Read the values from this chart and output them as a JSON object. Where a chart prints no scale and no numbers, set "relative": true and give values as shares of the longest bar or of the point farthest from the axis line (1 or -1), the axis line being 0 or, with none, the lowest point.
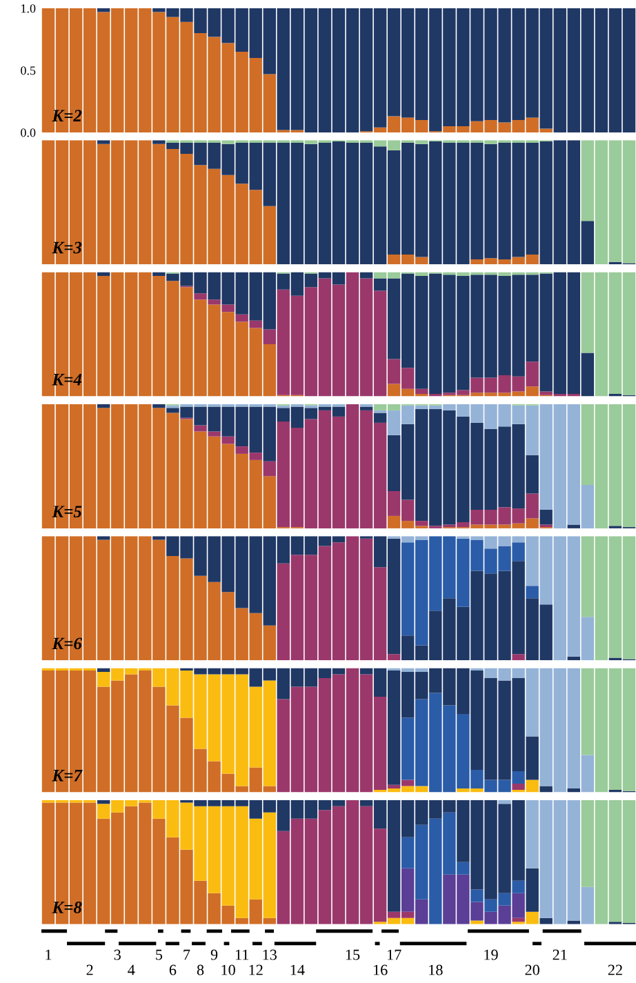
{
  "chart_data": [
    {
      "type": "bar",
      "stacked": true,
      "ylim": [
        0,
        1
      ],
      "yticks": [
        {
          "value": 0,
          "label": "0.0"
        },
        {
          "value": 0.5,
          "label": "0.5"
        },
        {
          "value": 1,
          "label": "1.0"
        }
      ],
      "tick_labels": "y",
      "annotations": [
        "K=2"
      ],
      "categories": [
        "1",
        null,
        null,
        "2",
        null,
        "3",
        "4",
        null,
        "5",
        "6",
        "7",
        "8",
        "9",
        "10",
        "11",
        "12",
        "13",
        null,
        "14",
        null,
        null,
        null,
        "15",
        null,
        "16",
        "17",
        null,
        null,
        "18",
        null,
        null,
        null,
        "19",
        null,
        null,
        "20",
        null,
        "21",
        null,
        null,
        null,
        "22",
        null
      ],
      "series": [
        {
          "color": "#d06e27",
          "values": [
            1,
            1,
            1,
            1,
            0.97,
            1,
            1,
            1,
            0.97,
            0.93,
            0.89,
            0.8,
            0.77,
            0.72,
            0.65,
            0.6,
            0.47,
            0.02,
            0.02,
            0,
            0,
            0,
            0,
            0.01,
            0.04,
            0.13,
            0.12,
            0.1,
            0.01,
            0.05,
            0.05,
            0.09,
            0.1,
            0.08,
            0.1,
            0.12,
            0.03,
            0,
            0,
            0,
            0,
            0,
            0
          ]
        },
        {
          "color": "#203864",
          "values": [
            0,
            0,
            0,
            0,
            0.03,
            0,
            0,
            0,
            0.03,
            0.07,
            0.11,
            0.2,
            0.23,
            0.28,
            0.35,
            0.4,
            0.53,
            0.98,
            0.98,
            1,
            1,
            1,
            1,
            0.99,
            0.96,
            0.87,
            0.88,
            0.9,
            0.99,
            0.95,
            0.95,
            0.91,
            0.9,
            0.92,
            0.9,
            0.88,
            0.97,
            1,
            1,
            1,
            1,
            1,
            1
          ]
        }
      ]
    },
    {
      "type": "bar",
      "stacked": true,
      "relative": true,
      "tick_labels": false,
      "annotations": [
        "K=3"
      ],
      "categories": [
        "1",
        null,
        null,
        "2",
        null,
        "3",
        "4",
        null,
        "5",
        "6",
        "7",
        "8",
        "9",
        "10",
        "11",
        "12",
        "13",
        null,
        "14",
        null,
        null,
        null,
        "15",
        null,
        "16",
        "17",
        null,
        null,
        "18",
        null,
        null,
        null,
        "19",
        null,
        null,
        "20",
        null,
        "21",
        null,
        null,
        null,
        "22",
        null
      ],
      "series": [
        {
          "color": "#d06e27",
          "values": [
            1,
            1,
            1,
            1,
            0.97,
            1,
            1,
            1,
            0.97,
            0.93,
            0.89,
            0.8,
            0.77,
            0.72,
            0.65,
            0.6,
            0.47,
            0,
            0,
            0,
            0,
            0,
            0,
            0,
            0,
            0.08,
            0.08,
            0.06,
            0,
            0,
            0,
            0.04,
            0.05,
            0.04,
            0.06,
            0.08,
            0,
            0,
            0,
            0,
            0,
            0,
            0
          ]
        },
        {
          "color": "#203864",
          "values": [
            0,
            0,
            0,
            0,
            0.03,
            0,
            0,
            0,
            0.03,
            0.05,
            0.09,
            0.18,
            0.21,
            0.25,
            0.33,
            0.38,
            0.51,
            0.98,
            0.98,
            0.97,
            0.98,
            0.99,
            0.98,
            0.98,
            0.95,
            0.84,
            0.9,
            0.91,
            0.99,
            0.98,
            0.98,
            0.94,
            0.92,
            0.94,
            0.92,
            0.9,
            0.99,
            1,
            1,
            0.35,
            0,
            0.02,
            0.01
          ]
        },
        {
          "color": "#9acb9a",
          "values": [
            0,
            0,
            0,
            0,
            0,
            0,
            0,
            0,
            0,
            0.02,
            0.02,
            0.02,
            0.02,
            0.03,
            0.02,
            0.02,
            0.02,
            0.02,
            0.02,
            0.03,
            0.02,
            0.01,
            0.02,
            0.02,
            0.05,
            0.08,
            0.02,
            0.03,
            0.01,
            0.02,
            0.02,
            0.02,
            0.03,
            0.02,
            0.02,
            0.02,
            0.01,
            0,
            0,
            0.65,
            1,
            0.98,
            0.99
          ]
        }
      ]
    },
    {
      "type": "bar",
      "stacked": true,
      "relative": true,
      "tick_labels": false,
      "annotations": [
        "K=4"
      ],
      "categories": [
        "1",
        null,
        null,
        "2",
        null,
        "3",
        "4",
        null,
        "5",
        "6",
        "7",
        "8",
        "9",
        "10",
        "11",
        "12",
        "13",
        null,
        "14",
        null,
        null,
        null,
        "15",
        null,
        "16",
        "17",
        null,
        null,
        "18",
        null,
        null,
        null,
        "19",
        null,
        null,
        "20",
        null,
        "21",
        null,
        null,
        null,
        "22",
        null
      ],
      "series": [
        {
          "color": "#d06e27",
          "values": [
            1,
            1,
            1,
            1,
            0.97,
            1,
            1,
            1,
            0.97,
            0.93,
            0.88,
            0.78,
            0.74,
            0.68,
            0.6,
            0.55,
            0.42,
            0.01,
            0.01,
            0,
            0,
            0,
            0,
            0,
            0,
            0.1,
            0.06,
            0.02,
            0,
            0.01,
            0.01,
            0.03,
            0.03,
            0.03,
            0.04,
            0.08,
            0.01,
            0,
            0,
            0,
            0,
            0,
            0
          ]
        },
        {
          "color": "#9b386b",
          "values": [
            0,
            0,
            0,
            0,
            0,
            0,
            0,
            0,
            0,
            0,
            0.01,
            0.05,
            0.04,
            0.06,
            0.06,
            0.06,
            0.12,
            0.85,
            0.8,
            0.88,
            0.95,
            0.9,
            1,
            0.95,
            0.85,
            0.2,
            0.17,
            0.04,
            0.02,
            0.02,
            0.04,
            0.12,
            0.12,
            0.14,
            0.12,
            0.2,
            0.03,
            0.02,
            0.02,
            0,
            0,
            0,
            0
          ]
        },
        {
          "color": "#203864",
          "values": [
            0,
            0,
            0,
            0,
            0.03,
            0,
            0,
            0,
            0.03,
            0.06,
            0.11,
            0.17,
            0.22,
            0.26,
            0.34,
            0.39,
            0.46,
            0.13,
            0.19,
            0.11,
            0.05,
            0.1,
            0,
            0.05,
            0.1,
            0.65,
            0.76,
            0.91,
            0.97,
            0.95,
            0.92,
            0.83,
            0.83,
            0.8,
            0.82,
            0.7,
            0.95,
            0.98,
            0.98,
            0.35,
            0,
            0.02,
            0.01
          ]
        },
        {
          "color": "#9acb9a",
          "values": [
            0,
            0,
            0,
            0,
            0,
            0,
            0,
            0,
            0,
            0.01,
            0,
            0,
            0,
            0,
            0,
            0,
            0,
            0.01,
            0,
            0.01,
            0,
            0,
            0,
            0,
            0.05,
            0.05,
            0.01,
            0.03,
            0.01,
            0.02,
            0.03,
            0.02,
            0.02,
            0.03,
            0.02,
            0.02,
            0.01,
            0,
            0,
            0.65,
            1,
            0.98,
            0.99
          ]
        }
      ]
    },
    {
      "type": "bar",
      "stacked": true,
      "relative": true,
      "tick_labels": false,
      "annotations": [
        "K=5"
      ],
      "categories": [
        "1",
        null,
        null,
        "2",
        null,
        "3",
        "4",
        null,
        "5",
        "6",
        "7",
        "8",
        "9",
        "10",
        "11",
        "12",
        "13",
        null,
        "14",
        null,
        null,
        null,
        "15",
        null,
        "16",
        "17",
        null,
        null,
        "18",
        null,
        null,
        null,
        "19",
        null,
        null,
        "20",
        null,
        "21",
        null,
        null,
        null,
        "22",
        null
      ],
      "series": [
        {
          "color": "#d06e27",
          "values": [
            1,
            1,
            1,
            1,
            0.97,
            1,
            1,
            1,
            0.97,
            0.93,
            0.88,
            0.78,
            0.74,
            0.68,
            0.6,
            0.55,
            0.42,
            0.01,
            0.01,
            0,
            0,
            0,
            0,
            0,
            0,
            0.1,
            0.06,
            0.02,
            0,
            0.01,
            0.01,
            0.03,
            0.03,
            0.03,
            0.04,
            0.08,
            0.01,
            0,
            0,
            0,
            0,
            0,
            0
          ]
        },
        {
          "color": "#9b386b",
          "values": [
            0,
            0,
            0,
            0,
            0,
            0,
            0,
            0,
            0,
            0,
            0.01,
            0.05,
            0.04,
            0.06,
            0.06,
            0.06,
            0.12,
            0.85,
            0.8,
            0.88,
            0.95,
            0.9,
            1,
            0.95,
            0.85,
            0.2,
            0.17,
            0.04,
            0.02,
            0.02,
            0.04,
            0.12,
            0.12,
            0.14,
            0.12,
            0.2,
            0.02,
            0,
            0,
            0,
            0,
            0,
            0
          ]
        },
        {
          "color": "#203864",
          "values": [
            0,
            0,
            0,
            0,
            0.03,
            0,
            0,
            0,
            0.03,
            0.04,
            0.09,
            0.15,
            0.2,
            0.24,
            0.32,
            0.37,
            0.44,
            0.11,
            0.17,
            0.09,
            0.03,
            0.08,
            0,
            0.03,
            0.08,
            0.45,
            0.61,
            0.9,
            0.94,
            0.92,
            0.85,
            0.7,
            0.65,
            0.65,
            0.68,
            0.31,
            0.12,
            0,
            0.03,
            0,
            0,
            0.02,
            0.01
          ]
        },
        {
          "color": "#95b3d7",
          "values": [
            0,
            0,
            0,
            0,
            0,
            0,
            0,
            0,
            0,
            0.02,
            0.02,
            0.02,
            0.02,
            0.02,
            0.02,
            0.02,
            0.02,
            0.02,
            0.02,
            0.02,
            0.02,
            0.02,
            0,
            0.02,
            0.02,
            0.2,
            0.15,
            0.03,
            0.03,
            0.05,
            0.1,
            0.15,
            0.2,
            0.18,
            0.15,
            0.4,
            0.85,
            1,
            0.97,
            0.35,
            0,
            0,
            0
          ]
        },
        {
          "color": "#9acb9a",
          "values": [
            0,
            0,
            0,
            0,
            0,
            0,
            0,
            0,
            0,
            0.01,
            0,
            0,
            0,
            0,
            0,
            0,
            0,
            0.01,
            0,
            0.01,
            0,
            0,
            0,
            0,
            0.05,
            0.05,
            0.01,
            0.01,
            0.01,
            0,
            0,
            0,
            0,
            0,
            0.01,
            0.01,
            0,
            0,
            0,
            0.65,
            1,
            0.98,
            0.99
          ]
        }
      ]
    },
    {
      "type": "bar",
      "stacked": true,
      "relative": true,
      "tick_labels": false,
      "annotations": [
        "K=6"
      ],
      "categories": [
        "1",
        null,
        null,
        "2",
        null,
        "3",
        "4",
        null,
        "5",
        "6",
        "7",
        "8",
        "9",
        "10",
        "11",
        "12",
        "13",
        null,
        "14",
        null,
        null,
        null,
        "15",
        null,
        "16",
        "17",
        null,
        null,
        "18",
        null,
        null,
        null,
        "19",
        null,
        null,
        "20",
        null,
        "21",
        null,
        null,
        null,
        "22",
        null
      ],
      "series": [
        {
          "color": "#d06e27",
          "values": [
            1,
            1,
            1,
            1,
            0.97,
            1,
            1,
            1,
            0.97,
            0.84,
            0.82,
            0.68,
            0.63,
            0.55,
            0.42,
            0.38,
            0.28,
            0,
            0,
            0,
            0,
            0,
            0,
            0,
            0,
            0,
            0,
            0,
            0,
            0,
            0,
            0,
            0,
            0,
            0,
            0,
            0,
            0,
            0,
            0,
            0,
            0,
            0
          ]
        },
        {
          "color": "#9b386b",
          "values": [
            0,
            0,
            0,
            0,
            0,
            0,
            0,
            0,
            0,
            0,
            0,
            0,
            0,
            0,
            0,
            0,
            0,
            0.78,
            0.85,
            0.85,
            0.92,
            0.95,
            1,
            0.98,
            0.75,
            0.05,
            0,
            0,
            0,
            0,
            0,
            0,
            0,
            0,
            0.05,
            0,
            0,
            0,
            0,
            0,
            0,
            0,
            0
          ]
        },
        {
          "color": "#203864",
          "values": [
            0,
            0,
            0,
            0,
            0.03,
            0,
            0,
            0,
            0.03,
            0.16,
            0.18,
            0.32,
            0.37,
            0.45,
            0.58,
            0.62,
            0.72,
            0.22,
            0.15,
            0.15,
            0.08,
            0.05,
            0,
            0.02,
            0.25,
            0.93,
            0.2,
            0.12,
            0.4,
            0.5,
            0.43,
            0.72,
            0.7,
            0.72,
            0.75,
            0.5,
            0.45,
            0,
            0.03,
            0,
            0,
            0.02,
            0.01
          ]
        },
        {
          "color": "#2a5ca8",
          "values": [
            0,
            0,
            0,
            0,
            0,
            0,
            0,
            0,
            0,
            0,
            0,
            0,
            0,
            0,
            0,
            0,
            0,
            0,
            0,
            0,
            0,
            0,
            0,
            0,
            0,
            0,
            0.75,
            0.85,
            0.6,
            0.5,
            0.55,
            0.25,
            0.2,
            0.2,
            0.15,
            0.1,
            0,
            0,
            0,
            0,
            0,
            0,
            0
          ]
        },
        {
          "color": "#95b3d7",
          "values": [
            0,
            0,
            0,
            0,
            0,
            0,
            0,
            0,
            0,
            0,
            0,
            0,
            0,
            0,
            0,
            0,
            0,
            0,
            0,
            0,
            0,
            0,
            0,
            0,
            0,
            0.02,
            0.05,
            0.03,
            0,
            0,
            0.02,
            0.03,
            0.1,
            0.08,
            0.05,
            0.4,
            0.55,
            1,
            0.97,
            0.35,
            0,
            0,
            0
          ]
        },
        {
          "color": "#9acb9a",
          "values": [
            0,
            0,
            0,
            0,
            0,
            0,
            0,
            0,
            0,
            0,
            0,
            0,
            0,
            0,
            0,
            0,
            0,
            0,
            0,
            0,
            0,
            0,
            0,
            0,
            0,
            0,
            0,
            0,
            0,
            0,
            0,
            0,
            0,
            0,
            0,
            0,
            0,
            0,
            0,
            0.65,
            1,
            0.98,
            0.99
          ]
        }
      ]
    },
    {
      "type": "bar",
      "stacked": true,
      "relative": true,
      "tick_labels": false,
      "annotations": [
        "K=7"
      ],
      "categories": [
        "1",
        null,
        null,
        "2",
        null,
        "3",
        "4",
        null,
        "5",
        "6",
        "7",
        "8",
        "9",
        "10",
        "11",
        "12",
        "13",
        null,
        "14",
        null,
        null,
        null,
        "15",
        null,
        "16",
        "17",
        null,
        null,
        "18",
        null,
        null,
        null,
        "19",
        null,
        null,
        "20",
        null,
        "21",
        null,
        null,
        null,
        "22",
        null
      ],
      "series": [
        {
          "color": "#d06e27",
          "values": [
            0.98,
            0.98,
            0.98,
            0.98,
            0.85,
            0.9,
            0.95,
            0.98,
            0.85,
            0.7,
            0.6,
            0.35,
            0.25,
            0.15,
            0.05,
            0.2,
            0.05,
            0,
            0,
            0,
            0,
            0,
            0,
            0,
            0,
            0,
            0,
            0,
            0,
            0,
            0,
            0,
            0,
            0,
            0,
            0,
            0,
            0,
            0,
            0,
            0,
            0,
            0
          ]
        },
        {
          "color": "#fbbc11",
          "values": [
            0.02,
            0.02,
            0.02,
            0.02,
            0.12,
            0.1,
            0.05,
            0.02,
            0.15,
            0.3,
            0.38,
            0.6,
            0.7,
            0.8,
            0.9,
            0.65,
            0.85,
            0,
            0,
            0,
            0,
            0,
            0,
            0,
            0.02,
            0.03,
            0.05,
            0.05,
            0,
            0,
            0.03,
            0.03,
            0,
            0,
            0.02,
            0.1,
            0,
            0,
            0,
            0,
            0,
            0,
            0
          ]
        },
        {
          "color": "#9b386b",
          "values": [
            0,
            0,
            0,
            0,
            0,
            0,
            0,
            0,
            0,
            0,
            0,
            0,
            0,
            0,
            0,
            0,
            0,
            0.75,
            0.85,
            0.85,
            0.92,
            0.95,
            1,
            0.95,
            0.75,
            0.03,
            0.05,
            0,
            0,
            0,
            0,
            0,
            0,
            0,
            0.05,
            0,
            0,
            0,
            0,
            0,
            0,
            0,
            0
          ]
        },
        {
          "color": "#2a5ca8",
          "values": [
            0,
            0,
            0,
            0,
            0,
            0,
            0,
            0,
            0,
            0,
            0,
            0,
            0,
            0,
            0,
            0,
            0,
            0,
            0,
            0,
            0,
            0,
            0,
            0,
            0,
            0,
            0.5,
            0.7,
            0.8,
            0.7,
            0.6,
            0.15,
            0.1,
            0.1,
            0.1,
            0,
            0,
            0,
            0,
            0,
            0,
            0,
            0
          ]
        },
        {
          "color": "#203864",
          "values": [
            0,
            0,
            0,
            0,
            0.03,
            0,
            0,
            0,
            0,
            0,
            0.02,
            0.05,
            0.05,
            0.05,
            0.05,
            0.15,
            0.1,
            0.25,
            0.15,
            0.15,
            0.08,
            0.05,
            0,
            0.05,
            0.23,
            0.92,
            0.37,
            0.22,
            0.2,
            0.3,
            0.37,
            0.8,
            0.82,
            0.8,
            0.75,
            0.35,
            0.05,
            0,
            0.03,
            0,
            0,
            0.02,
            0.01
          ]
        },
        {
          "color": "#95b3d7",
          "values": [
            0,
            0,
            0,
            0,
            0,
            0,
            0,
            0,
            0,
            0,
            0,
            0,
            0,
            0,
            0,
            0,
            0,
            0,
            0,
            0,
            0,
            0,
            0,
            0,
            0,
            0.02,
            0.03,
            0.03,
            0,
            0,
            0,
            0.02,
            0.08,
            0.1,
            0.08,
            0.55,
            0.95,
            1,
            0.97,
            0.3,
            0,
            0,
            0
          ]
        },
        {
          "color": "#9acb9a",
          "values": [
            0,
            0,
            0,
            0,
            0,
            0,
            0,
            0,
            0,
            0,
            0,
            0,
            0,
            0,
            0,
            0,
            0,
            0,
            0,
            0,
            0,
            0,
            0,
            0,
            0,
            0,
            0,
            0,
            0,
            0,
            0,
            0,
            0,
            0,
            0,
            0,
            0,
            0,
            0,
            0.7,
            1,
            0.98,
            0.99
          ]
        }
      ]
    },
    {
      "type": "bar",
      "stacked": true,
      "relative": true,
      "tick_labels": "x",
      "annotations": [
        "K=8"
      ],
      "categories": [
        "1",
        null,
        null,
        "2",
        null,
        "3",
        "4",
        null,
        "5",
        "6",
        "7",
        "8",
        "9",
        "10",
        "11",
        "12",
        "13",
        null,
        "14",
        null,
        null,
        null,
        "15",
        null,
        "16",
        "17",
        null,
        null,
        "18",
        null,
        null,
        null,
        "19",
        null,
        null,
        "20",
        null,
        "21",
        null,
        null,
        null,
        "22",
        null
      ],
      "series": [
        {
          "color": "#d06e27",
          "values": [
            0.98,
            0.98,
            0.98,
            0.98,
            0.85,
            0.9,
            0.95,
            0.98,
            0.85,
            0.7,
            0.6,
            0.35,
            0.25,
            0.15,
            0.05,
            0.2,
            0.05,
            0,
            0,
            0,
            0,
            0,
            0,
            0,
            0,
            0,
            0,
            0,
            0,
            0,
            0,
            0,
            0,
            0,
            0,
            0,
            0,
            0,
            0,
            0,
            0,
            0,
            0
          ]
        },
        {
          "color": "#fbbc11",
          "values": [
            0.02,
            0.02,
            0.02,
            0.02,
            0.12,
            0.1,
            0.05,
            0.02,
            0.15,
            0.3,
            0.38,
            0.6,
            0.7,
            0.8,
            0.9,
            0.65,
            0.85,
            0,
            0,
            0,
            0,
            0,
            0,
            0,
            0.02,
            0.05,
            0.05,
            0,
            0,
            0,
            0,
            0.03,
            0,
            0,
            0.02,
            0.1,
            0,
            0,
            0,
            0,
            0,
            0,
            0
          ]
        },
        {
          "color": "#9b386b",
          "values": [
            0,
            0,
            0,
            0,
            0,
            0,
            0,
            0,
            0,
            0,
            0,
            0,
            0,
            0,
            0,
            0,
            0,
            0.75,
            0.85,
            0.85,
            0.92,
            0.95,
            1,
            0.95,
            0.75,
            0.05,
            0.05,
            0,
            0,
            0,
            0,
            0,
            0,
            0,
            0.03,
            0,
            0,
            0,
            0,
            0,
            0,
            0,
            0
          ]
        },
        {
          "color": "#5b3e96",
          "values": [
            0,
            0,
            0,
            0,
            0,
            0,
            0,
            0,
            0,
            0,
            0,
            0,
            0,
            0,
            0,
            0,
            0,
            0,
            0,
            0,
            0,
            0,
            0,
            0,
            0,
            0,
            0.35,
            0.2,
            0,
            0.4,
            0.4,
            0.15,
            0.1,
            0.15,
            0.2,
            0,
            0,
            0,
            0,
            0,
            0,
            0,
            0
          ]
        },
        {
          "color": "#2a5ca8",
          "values": [
            0,
            0,
            0,
            0,
            0,
            0,
            0,
            0,
            0,
            0,
            0,
            0,
            0,
            0,
            0,
            0,
            0,
            0,
            0,
            0,
            0,
            0,
            0,
            0,
            0,
            0,
            0.25,
            0.6,
            0.85,
            0.5,
            0.1,
            0.1,
            0.1,
            0.1,
            0.1,
            0,
            0,
            0,
            0,
            0,
            0,
            0,
            0
          ]
        },
        {
          "color": "#203864",
          "values": [
            0,
            0,
            0,
            0,
            0.03,
            0,
            0,
            0,
            0,
            0,
            0.02,
            0.05,
            0.05,
            0.05,
            0.05,
            0.15,
            0.1,
            0.25,
            0.15,
            0.15,
            0.08,
            0.05,
            0,
            0.05,
            0.23,
            0.9,
            0.3,
            0.2,
            0.15,
            0.1,
            0.5,
            0.72,
            0.8,
            0.72,
            0.65,
            0.35,
            0.05,
            0,
            0.03,
            0,
            0,
            0.02,
            0.01
          ]
        },
        {
          "color": "#95b3d7",
          "values": [
            0,
            0,
            0,
            0,
            0,
            0,
            0,
            0,
            0,
            0,
            0,
            0,
            0,
            0,
            0,
            0,
            0,
            0,
            0,
            0,
            0,
            0,
            0,
            0,
            0,
            0,
            0,
            0,
            0,
            0,
            0,
            0,
            0,
            0.03,
            0,
            0.55,
            0.95,
            1,
            0.97,
            0.3,
            0,
            0,
            0
          ]
        },
        {
          "color": "#9acb9a",
          "values": [
            0,
            0,
            0,
            0,
            0,
            0,
            0,
            0,
            0,
            0,
            0,
            0,
            0,
            0,
            0,
            0,
            0,
            0,
            0,
            0,
            0,
            0,
            0,
            0,
            0,
            0,
            0,
            0,
            0,
            0,
            0,
            0,
            0,
            0,
            0,
            0,
            0,
            0,
            0,
            0.7,
            1,
            0.98,
            0.99
          ]
        }
      ]
    }
  ]
}
